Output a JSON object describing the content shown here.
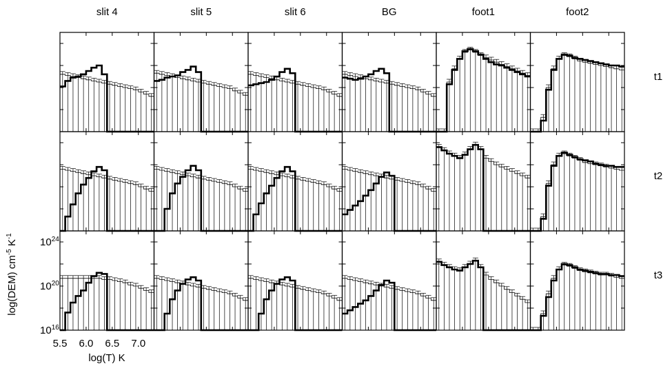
{
  "chart_data": {
    "type": "line",
    "columns": [
      "slit 4",
      "slit 5",
      "slit 6",
      "BG",
      "foot1",
      "foot2"
    ],
    "rows": [
      "t1",
      "t2",
      "t3"
    ],
    "xlabel": "log(T) K",
    "ylabel": {
      "prefix": "log(DEM) cm",
      "exp1": "-5",
      "mid": " K",
      "exp2": "-1"
    },
    "xlim": [
      5.5,
      7.3
    ],
    "ylim": [
      16,
      25
    ],
    "y_scale": "log",
    "x_ticks": [
      {
        "value": 5.5,
        "label": "5.5"
      },
      {
        "value": 6.0,
        "label": "6.0"
      },
      {
        "value": 6.5,
        "label": "6.5"
      },
      {
        "value": 7.0,
        "label": "7.0"
      }
    ],
    "y_ticks": [
      {
        "value": 16,
        "base": "10",
        "exp": "16"
      },
      {
        "value": 20,
        "base": "10",
        "exp": "20"
      },
      {
        "value": 24,
        "base": "10",
        "exp": "24"
      }
    ],
    "bins": [
      5.5,
      5.6,
      5.7,
      5.8,
      5.9,
      6.0,
      6.1,
      6.2,
      6.3,
      6.4,
      6.5,
      6.6,
      6.7,
      6.8,
      6.9,
      7.0,
      7.1,
      7.2,
      7.3
    ],
    "panels": [
      {
        "row": 0,
        "col": 0,
        "values": [
          20.1,
          20.6,
          20.9,
          21.0,
          21.2,
          21.5,
          21.8,
          22.0,
          21.2,
          16.0,
          16.0,
          16.0,
          16.0,
          16.0,
          16.0,
          16.0,
          16.0,
          16.0
        ],
        "fit": [
          21.2,
          21.1,
          21.0,
          20.9,
          20.8,
          20.7,
          20.6,
          20.5,
          20.4,
          20.3,
          20.2,
          20.1,
          20.0,
          19.9,
          19.8,
          19.6,
          19.4,
          19.2
        ]
      },
      {
        "row": 0,
        "col": 1,
        "values": [
          20.6,
          20.7,
          20.9,
          21.0,
          21.1,
          21.4,
          21.6,
          21.9,
          21.4,
          16.0,
          16.0,
          16.0,
          16.0,
          16.0,
          16.0,
          16.0,
          16.0,
          16.0
        ],
        "fit": [
          21.3,
          21.2,
          21.1,
          21.0,
          20.9,
          20.8,
          20.7,
          20.6,
          20.5,
          20.4,
          20.3,
          20.2,
          20.1,
          20.0,
          19.9,
          19.7,
          19.5,
          19.3
        ]
      },
      {
        "row": 0,
        "col": 2,
        "values": [
          20.2,
          20.3,
          20.4,
          20.5,
          20.7,
          21.0,
          21.4,
          21.7,
          21.3,
          16.0,
          16.0,
          16.0,
          16.0,
          16.0,
          16.0,
          16.0,
          16.0,
          16.0
        ],
        "fit": [
          21.2,
          21.1,
          21.0,
          20.9,
          20.8,
          20.7,
          20.6,
          20.5,
          20.4,
          20.3,
          20.2,
          20.1,
          20.0,
          19.9,
          19.8,
          19.6,
          19.4,
          19.2
        ]
      },
      {
        "row": 0,
        "col": 3,
        "values": [
          20.9,
          20.8,
          20.7,
          20.8,
          21.0,
          21.2,
          21.5,
          21.7,
          21.3,
          16.0,
          16.0,
          16.0,
          16.0,
          16.0,
          16.0,
          16.0,
          16.0,
          16.0
        ],
        "fit": [
          21.2,
          21.1,
          21.0,
          20.9,
          20.8,
          20.7,
          20.6,
          20.5,
          20.4,
          20.3,
          20.2,
          20.1,
          20.0,
          19.9,
          19.8,
          19.6,
          19.4,
          19.2
        ]
      },
      {
        "row": 0,
        "col": 4,
        "values": [
          16.0,
          16.0,
          20.3,
          21.6,
          22.6,
          23.3,
          23.5,
          23.3,
          23.0,
          22.6,
          22.3,
          22.1,
          22.0,
          21.8,
          21.6,
          21.4,
          21.2,
          21.0
        ],
        "fit": [
          16.0,
          16.0,
          20.5,
          21.7,
          22.6,
          23.2,
          23.4,
          23.2,
          22.9,
          22.7,
          22.5,
          22.3,
          22.1,
          21.9,
          21.7,
          21.5,
          21.3,
          21.1
        ]
      },
      {
        "row": 0,
        "col": 5,
        "values": [
          16.0,
          16.0,
          17.0,
          19.8,
          21.6,
          22.6,
          23.0,
          22.9,
          22.7,
          22.6,
          22.5,
          22.4,
          22.3,
          22.2,
          22.1,
          22.0,
          22.0,
          21.9
        ],
        "fit": [
          16.0,
          16.0,
          17.3,
          20.0,
          21.7,
          22.6,
          22.9,
          22.8,
          22.6,
          22.4,
          22.3,
          22.2,
          22.1,
          22.0,
          21.9,
          21.8,
          21.7,
          21.6
        ]
      },
      {
        "row": 1,
        "col": 0,
        "values": [
          16.0,
          17.3,
          18.4,
          19.4,
          20.2,
          20.8,
          21.4,
          21.8,
          21.5,
          16.0,
          16.0,
          16.0,
          16.0,
          16.0,
          16.0,
          16.0,
          16.0,
          16.0
        ],
        "fit": [
          21.6,
          21.5,
          21.4,
          21.3,
          21.2,
          21.1,
          21.0,
          20.9,
          20.8,
          20.7,
          20.6,
          20.5,
          20.4,
          20.3,
          20.2,
          20.0,
          19.8,
          19.6
        ]
      },
      {
        "row": 1,
        "col": 1,
        "values": [
          16.0,
          16.0,
          18.0,
          19.4,
          20.3,
          20.9,
          21.5,
          21.9,
          21.5,
          16.0,
          16.0,
          16.0,
          16.0,
          16.0,
          16.0,
          16.0,
          16.0,
          16.0
        ],
        "fit": [
          21.6,
          21.5,
          21.4,
          21.3,
          21.2,
          21.1,
          21.0,
          20.9,
          20.8,
          20.7,
          20.6,
          20.5,
          20.4,
          20.3,
          20.2,
          20.0,
          19.8,
          19.6
        ]
      },
      {
        "row": 1,
        "col": 2,
        "values": [
          16.0,
          17.5,
          18.5,
          19.4,
          20.1,
          20.8,
          21.4,
          21.8,
          21.4,
          16.0,
          16.0,
          16.0,
          16.0,
          16.0,
          16.0,
          16.0,
          16.0,
          16.0
        ],
        "fit": [
          21.6,
          21.5,
          21.4,
          21.3,
          21.2,
          21.1,
          21.0,
          20.9,
          20.8,
          20.7,
          20.6,
          20.5,
          20.4,
          20.3,
          20.2,
          20.0,
          19.8,
          19.6
        ]
      },
      {
        "row": 1,
        "col": 3,
        "values": [
          17.5,
          17.9,
          18.3,
          18.7,
          19.2,
          19.7,
          20.3,
          20.9,
          21.3,
          21.0,
          16.0,
          16.0,
          16.0,
          16.0,
          16.0,
          16.0,
          16.0,
          16.0
        ],
        "fit": [
          21.6,
          21.5,
          21.4,
          21.3,
          21.2,
          21.1,
          21.0,
          20.9,
          20.8,
          20.7,
          20.6,
          20.5,
          20.4,
          20.3,
          20.2,
          20.0,
          19.8,
          19.6
        ]
      },
      {
        "row": 1,
        "col": 4,
        "values": [
          23.6,
          23.3,
          23.0,
          22.8,
          22.6,
          22.9,
          23.4,
          23.8,
          23.4,
          16.0,
          16.0,
          16.0,
          16.0,
          16.0,
          16.0,
          16.0,
          16.0,
          16.0
        ],
        "fit": [
          23.6,
          23.3,
          23.0,
          22.8,
          22.6,
          22.9,
          23.4,
          23.8,
          23.4,
          22.6,
          22.3,
          22.0,
          21.8,
          21.6,
          21.4,
          21.2,
          21.0,
          20.8
        ]
      },
      {
        "row": 1,
        "col": 5,
        "values": [
          16.0,
          16.0,
          17.1,
          20.1,
          21.9,
          22.8,
          23.1,
          22.9,
          22.7,
          22.5,
          22.4,
          22.3,
          22.1,
          22.0,
          21.9,
          21.9,
          21.8,
          21.8
        ],
        "fit": [
          16.0,
          16.0,
          17.3,
          20.3,
          22.0,
          22.8,
          23.0,
          22.8,
          22.6,
          22.4,
          22.2,
          22.1,
          22.0,
          21.9,
          21.8,
          21.7,
          21.6,
          21.5
        ]
      },
      {
        "row": 2,
        "col": 0,
        "values": [
          16.0,
          17.6,
          18.5,
          19.1,
          19.6,
          20.3,
          20.9,
          21.2,
          21.1,
          16.0,
          16.0,
          16.0,
          16.0,
          16.0,
          16.0,
          16.0,
          16.0,
          16.0
        ],
        "fit": [
          20.7,
          20.7,
          20.7,
          20.7,
          20.7,
          20.7,
          20.7,
          20.7,
          20.6,
          20.6,
          20.5,
          20.4,
          20.3,
          20.1,
          20.0,
          19.8,
          19.6,
          19.4
        ]
      },
      {
        "row": 2,
        "col": 1,
        "values": [
          16.0,
          16.0,
          17.5,
          18.8,
          19.6,
          20.2,
          20.6,
          20.8,
          20.5,
          16.0,
          16.0,
          16.0,
          16.0,
          16.0,
          16.0,
          16.0,
          16.0,
          16.0
        ],
        "fit": [
          20.7,
          20.6,
          20.5,
          20.4,
          20.3,
          20.2,
          20.1,
          20.0,
          19.9,
          19.8,
          19.7,
          19.6,
          19.5,
          19.4,
          19.3,
          19.1,
          18.9,
          18.7
        ]
      },
      {
        "row": 2,
        "col": 2,
        "values": [
          16.0,
          16.0,
          17.5,
          18.8,
          19.6,
          20.2,
          20.6,
          20.8,
          20.5,
          16.0,
          16.0,
          16.0,
          16.0,
          16.0,
          16.0,
          16.0,
          16.0,
          16.0
        ],
        "fit": [
          20.7,
          20.6,
          20.5,
          20.4,
          20.3,
          20.2,
          20.1,
          20.0,
          19.9,
          19.8,
          19.7,
          19.6,
          19.5,
          19.4,
          19.3,
          19.1,
          18.9,
          18.7
        ]
      },
      {
        "row": 2,
        "col": 3,
        "values": [
          17.5,
          17.8,
          18.1,
          18.4,
          18.7,
          19.1,
          19.6,
          20.1,
          20.5,
          20.3,
          16.0,
          16.0,
          16.0,
          16.0,
          16.0,
          16.0,
          16.0,
          16.0
        ],
        "fit": [
          20.7,
          20.6,
          20.5,
          20.4,
          20.3,
          20.2,
          20.1,
          20.0,
          19.9,
          19.8,
          19.7,
          19.6,
          19.5,
          19.4,
          19.3,
          19.1,
          18.9,
          18.7
        ]
      },
      {
        "row": 2,
        "col": 4,
        "values": [
          22.2,
          21.9,
          21.7,
          21.5,
          21.4,
          21.7,
          22.0,
          22.3,
          21.7,
          16.0,
          16.0,
          16.0,
          16.0,
          16.0,
          16.0,
          16.0,
          16.0,
          16.0
        ],
        "fit": [
          22.2,
          21.9,
          21.7,
          21.5,
          21.4,
          21.7,
          22.0,
          22.3,
          21.7,
          21.0,
          20.6,
          20.3,
          20.0,
          19.7,
          19.4,
          19.1,
          18.8,
          18.5
        ]
      },
      {
        "row": 2,
        "col": 5,
        "values": [
          16.0,
          16.0,
          17.3,
          19.0,
          20.5,
          21.5,
          22.0,
          21.9,
          21.7,
          21.5,
          21.4,
          21.3,
          21.2,
          21.1,
          21.1,
          21.0,
          21.0,
          20.9
        ],
        "fit": [
          16.0,
          16.0,
          17.5,
          19.3,
          20.7,
          21.5,
          21.9,
          21.8,
          21.6,
          21.4,
          21.3,
          21.2,
          21.1,
          21.0,
          21.0,
          20.9,
          20.8,
          20.7
        ]
      }
    ]
  }
}
